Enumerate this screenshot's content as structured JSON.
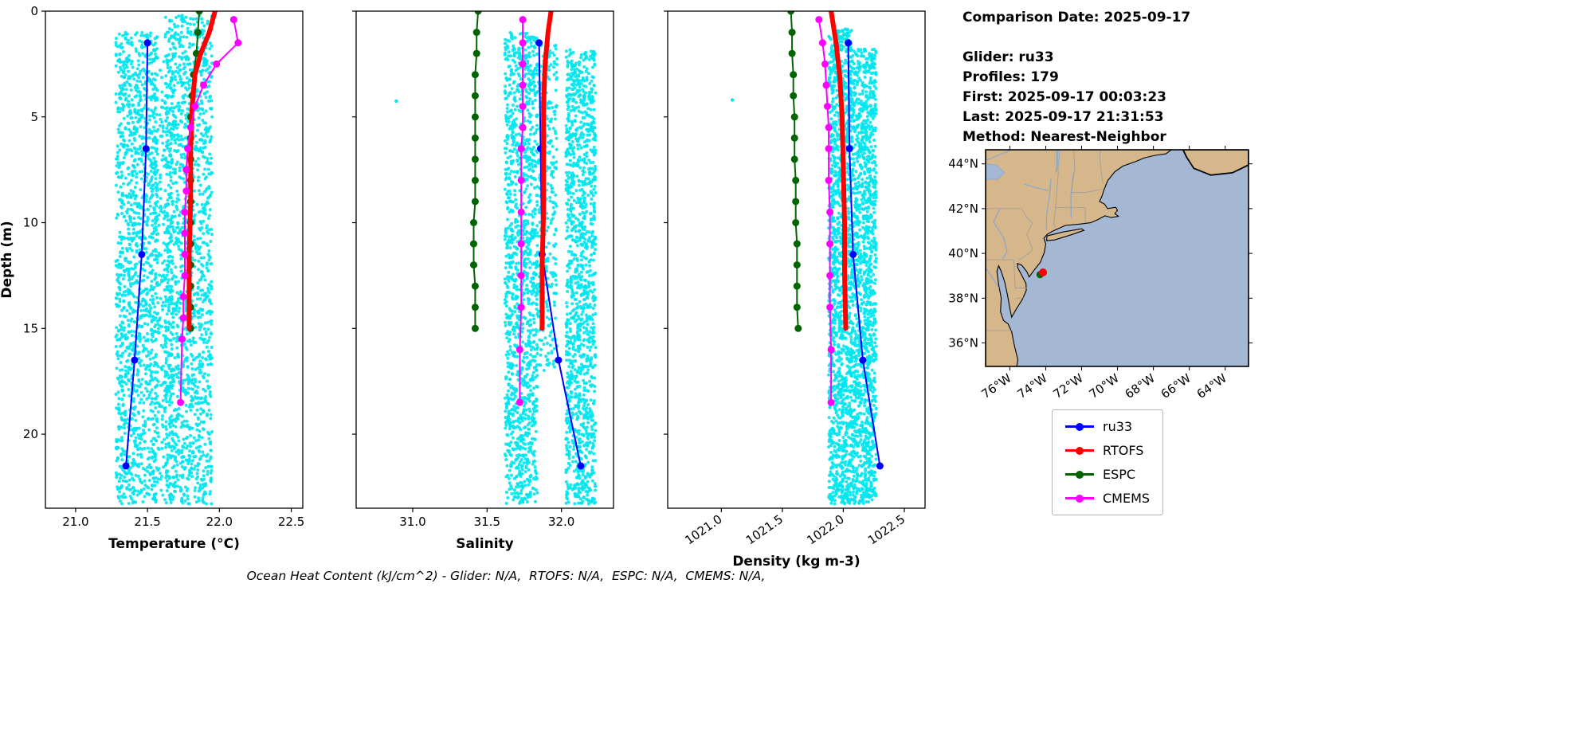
{
  "info_panel": {
    "comparison_date": "Comparison Date: 2025-09-17",
    "glider": "Glider: ru33",
    "profiles": "Profiles: 179",
    "first": "First: 2025-09-17 00:03:23",
    "last": "Last: 2025-09-17 21:31:53",
    "method": "Method: Nearest-Neighbor"
  },
  "footer_note": "Ocean Heat Content (kJ/cm^2) - Glider: N/A,  RTOFS: N/A,  ESPC: N/A,  CMEMS: N/A,",
  "legend": {
    "items": [
      {
        "label": "ru33",
        "color": "#0000ff"
      },
      {
        "label": "RTOFS",
        "color": "#ff0000"
      },
      {
        "label": "ESPC",
        "color": "#006400"
      },
      {
        "label": "CMEMS",
        "color": "#ff00ff"
      }
    ]
  },
  "map": {
    "lat_tick_labels": [
      "44°N",
      "42°N",
      "40°N",
      "38°N",
      "36°N"
    ],
    "lat_tick_values": [
      44,
      42,
      40,
      38,
      36
    ],
    "lon_tick_labels": [
      "76°W",
      "74°W",
      "72°W",
      "70°W",
      "68°W",
      "66°W",
      "64°W"
    ],
    "lon_tick_values": [
      -76,
      -74,
      -72,
      -70,
      -68,
      -66,
      -64
    ],
    "extent": {
      "lon_min": -77.35,
      "lon_max": -62.7,
      "lat_min": 34.95,
      "lat_max": 44.63
    },
    "land_color": "#d5b78b",
    "ocean_color": "#a4b8d4",
    "river_color": "#8aa5cc",
    "state_line_color": "#9b9b9b",
    "glider_marker": {
      "lon": -74.15,
      "lat": 39.15,
      "color": "#ff0000"
    },
    "model_marker": {
      "lon": -74.32,
      "lat": 39.05,
      "color": "#006400"
    }
  },
  "chart_data": [
    {
      "id": "temperature",
      "type": "scatter",
      "seed": 11,
      "xlabel": "Temperature (°C)",
      "ylabel": "Depth (m)",
      "show_ylabel": true,
      "show_ytick_labels": true,
      "xlim": [
        20.79,
        22.58
      ],
      "ylim_depth": [
        0,
        23.5
      ],
      "xticks": [
        21.0,
        21.5,
        22.0,
        22.5
      ],
      "xtick_labels": [
        "21.0",
        "21.5",
        "22.0",
        "22.5"
      ],
      "xtick_rotation": 0,
      "yticks": [
        0,
        5,
        10,
        15,
        20
      ],
      "ytick_labels": [
        "0",
        "5",
        "10",
        "15",
        "20"
      ],
      "scatter": {
        "name": "glider-raw-points",
        "color": "#00e5ee",
        "bands": [
          {
            "x": [
              21.28,
              21.57
            ],
            "depth": [
              1.0,
              23.3
            ],
            "n": 1400
          },
          {
            "x": [
              21.55,
              21.68
            ],
            "depth": [
              2.0,
              23.3
            ],
            "n": 300
          },
          {
            "x": [
              21.62,
              21.95
            ],
            "depth": [
              0.2,
              23.3
            ],
            "n": 1500
          }
        ],
        "extra_points": []
      },
      "series": [
        {
          "name": "ru33",
          "color": "#0000ff",
          "line_width": 2,
          "marker": true,
          "marker_size": 4.5,
          "points": [
            [
              21.5,
              1.5
            ],
            [
              21.49,
              6.5
            ],
            [
              21.46,
              11.5
            ],
            [
              21.41,
              16.5
            ],
            [
              21.35,
              21.5
            ]
          ]
        },
        {
          "name": "ESPC",
          "color": "#006400",
          "line_width": 2,
          "marker": true,
          "marker_size": 4.5,
          "points": [
            [
              21.86,
              0
            ],
            [
              21.85,
              1
            ],
            [
              21.84,
              2
            ],
            [
              21.82,
              3
            ],
            [
              21.81,
              4
            ],
            [
              21.8,
              5
            ],
            [
              21.8,
              6
            ],
            [
              21.8,
              7
            ],
            [
              21.8,
              8
            ],
            [
              21.8,
              9
            ],
            [
              21.8,
              10
            ],
            [
              21.8,
              11
            ],
            [
              21.8,
              12
            ],
            [
              21.8,
              13
            ],
            [
              21.8,
              14
            ],
            [
              21.8,
              15
            ]
          ]
        },
        {
          "name": "RTOFS",
          "color": "#ff0000",
          "line_width": 6,
          "marker": false,
          "marker_size": 0,
          "points": [
            [
              21.97,
              0
            ],
            [
              21.93,
              1
            ],
            [
              21.87,
              2
            ],
            [
              21.83,
              3
            ],
            [
              21.81,
              4.5
            ],
            [
              21.8,
              6.5
            ],
            [
              21.8,
              9
            ],
            [
              21.79,
              11.5
            ],
            [
              21.79,
              15
            ]
          ]
        },
        {
          "name": "CMEMS",
          "color": "#ff00ff",
          "line_width": 2,
          "marker": true,
          "marker_size": 4.5,
          "points": [
            [
              22.1,
              0.4
            ],
            [
              22.13,
              1.5
            ],
            [
              21.98,
              2.5
            ],
            [
              21.89,
              3.5
            ],
            [
              21.83,
              4.5
            ],
            [
              21.8,
              5.5
            ],
            [
              21.78,
              6.5
            ],
            [
              21.77,
              7.5
            ],
            [
              21.77,
              8.5
            ],
            [
              21.76,
              9.5
            ],
            [
              21.76,
              10.5
            ],
            [
              21.76,
              11.5
            ],
            [
              21.76,
              12.5
            ],
            [
              21.75,
              13.5
            ],
            [
              21.75,
              14.5
            ],
            [
              21.74,
              15.5
            ],
            [
              21.73,
              18.5
            ]
          ]
        }
      ]
    },
    {
      "id": "salinity",
      "type": "scatter",
      "seed": 22,
      "xlabel": "Salinity",
      "ylabel": "Depth (m)",
      "show_ylabel": false,
      "show_ytick_labels": false,
      "xlim": [
        30.62,
        32.35
      ],
      "ylim_depth": [
        0,
        23.5
      ],
      "xticks": [
        31.0,
        31.5,
        32.0
      ],
      "xtick_labels": [
        "31.0",
        "31.5",
        "32.0"
      ],
      "xtick_rotation": 0,
      "yticks": [
        0,
        5,
        10,
        15,
        20
      ],
      "ytick_labels": [
        "0",
        "5",
        "10",
        "15",
        "20"
      ],
      "scatter": {
        "name": "glider-raw-points",
        "color": "#00e5ee",
        "bands": [
          {
            "x": [
              31.62,
              31.84
            ],
            "depth": [
              1.0,
              23.3
            ],
            "n": 1300
          },
          {
            "x": [
              31.84,
              31.97
            ],
            "depth": [
              1.5,
              17.0
            ],
            "n": 300
          },
          {
            "x": [
              32.03,
              32.23
            ],
            "depth": [
              1.8,
              23.3
            ],
            "n": 1300
          }
        ],
        "extra_points": [
          [
            30.89,
            4.25
          ]
        ]
      },
      "series": [
        {
          "name": "ru33",
          "color": "#0000ff",
          "line_width": 2,
          "marker": true,
          "marker_size": 4.5,
          "points": [
            [
              31.85,
              1.5
            ],
            [
              31.86,
              6.5
            ],
            [
              31.87,
              11.5
            ],
            [
              31.98,
              16.5
            ],
            [
              32.13,
              21.5
            ]
          ]
        },
        {
          "name": "ESPC",
          "color": "#006400",
          "line_width": 2,
          "marker": true,
          "marker_size": 4.5,
          "points": [
            [
              31.44,
              0
            ],
            [
              31.43,
              1
            ],
            [
              31.43,
              2
            ],
            [
              31.42,
              3
            ],
            [
              31.42,
              4
            ],
            [
              31.42,
              5
            ],
            [
              31.42,
              6
            ],
            [
              31.42,
              7
            ],
            [
              31.42,
              8
            ],
            [
              31.42,
              9
            ],
            [
              31.41,
              10
            ],
            [
              31.41,
              11
            ],
            [
              31.41,
              12
            ],
            [
              31.42,
              13
            ],
            [
              31.42,
              14
            ],
            [
              31.42,
              15
            ]
          ]
        },
        {
          "name": "RTOFS",
          "color": "#ff0000",
          "line_width": 6,
          "marker": false,
          "marker_size": 0,
          "points": [
            [
              31.93,
              0
            ],
            [
              31.91,
              1
            ],
            [
              31.89,
              2.5
            ],
            [
              31.88,
              4.5
            ],
            [
              31.88,
              7
            ],
            [
              31.88,
              9.5
            ],
            [
              31.87,
              12
            ],
            [
              31.87,
              15
            ]
          ]
        },
        {
          "name": "CMEMS",
          "color": "#ff00ff",
          "line_width": 2,
          "marker": true,
          "marker_size": 4.5,
          "points": [
            [
              31.74,
              0.4
            ],
            [
              31.74,
              1.5
            ],
            [
              31.74,
              2.5
            ],
            [
              31.74,
              3.5
            ],
            [
              31.74,
              4.5
            ],
            [
              31.74,
              5.5
            ],
            [
              31.73,
              6.5
            ],
            [
              31.73,
              8
            ],
            [
              31.73,
              9.5
            ],
            [
              31.73,
              11
            ],
            [
              31.73,
              12.5
            ],
            [
              31.73,
              14
            ],
            [
              31.72,
              16
            ],
            [
              31.72,
              18.5
            ]
          ]
        }
      ]
    },
    {
      "id": "density",
      "type": "scatter",
      "seed": 33,
      "xlabel": "Density (kg m-3)",
      "ylabel": "Depth (m)",
      "show_ylabel": false,
      "show_ytick_labels": false,
      "xlim": [
        1020.56,
        1022.67
      ],
      "ylim_depth": [
        0,
        23.5
      ],
      "xticks": [
        1021.0,
        1021.5,
        1022.0,
        1022.5
      ],
      "xtick_labels": [
        "1021.0",
        "1021.5",
        "1022.0",
        "1022.5"
      ],
      "xtick_rotation": 35,
      "yticks": [
        0,
        5,
        10,
        15,
        20
      ],
      "ytick_labels": [
        "0",
        "5",
        "10",
        "15",
        "20"
      ],
      "scatter": {
        "name": "glider-raw-points",
        "color": "#00e5ee",
        "bands": [
          {
            "x": [
              1021.88,
              1022.07
            ],
            "depth": [
              0.8,
              23.3
            ],
            "n": 1400
          },
          {
            "x": [
              1022.07,
              1022.27
            ],
            "depth": [
              1.8,
              23.3
            ],
            "n": 1400
          }
        ],
        "extra_points": [
          [
            1021.09,
            4.2
          ]
        ]
      },
      "series": [
        {
          "name": "ru33",
          "color": "#0000ff",
          "line_width": 2,
          "marker": true,
          "marker_size": 4.5,
          "points": [
            [
              1022.04,
              1.5
            ],
            [
              1022.05,
              6.5
            ],
            [
              1022.08,
              11.5
            ],
            [
              1022.16,
              16.5
            ],
            [
              1022.3,
              21.5
            ]
          ]
        },
        {
          "name": "ESPC",
          "color": "#006400",
          "line_width": 2,
          "marker": true,
          "marker_size": 4.5,
          "points": [
            [
              1021.57,
              0
            ],
            [
              1021.58,
              1
            ],
            [
              1021.58,
              2
            ],
            [
              1021.59,
              3
            ],
            [
              1021.59,
              4
            ],
            [
              1021.6,
              5
            ],
            [
              1021.6,
              6
            ],
            [
              1021.6,
              7
            ],
            [
              1021.61,
              8
            ],
            [
              1021.61,
              9
            ],
            [
              1021.61,
              10
            ],
            [
              1021.62,
              11
            ],
            [
              1021.62,
              12
            ],
            [
              1021.62,
              13
            ],
            [
              1021.62,
              14
            ],
            [
              1021.63,
              15
            ]
          ]
        },
        {
          "name": "RTOFS",
          "color": "#ff0000",
          "line_width": 6,
          "marker": false,
          "marker_size": 0,
          "points": [
            [
              1021.9,
              0
            ],
            [
              1021.94,
              1.5
            ],
            [
              1021.97,
              3
            ],
            [
              1021.99,
              5
            ],
            [
              1022.0,
              7.5
            ],
            [
              1022.01,
              10
            ],
            [
              1022.01,
              12.5
            ],
            [
              1022.02,
              15
            ]
          ]
        },
        {
          "name": "CMEMS",
          "color": "#ff00ff",
          "line_width": 2,
          "marker": true,
          "marker_size": 4.5,
          "points": [
            [
              1021.8,
              0.4
            ],
            [
              1021.83,
              1.5
            ],
            [
              1021.85,
              2.5
            ],
            [
              1021.86,
              3.5
            ],
            [
              1021.87,
              4.5
            ],
            [
              1021.88,
              5.5
            ],
            [
              1021.88,
              6.5
            ],
            [
              1021.88,
              8
            ],
            [
              1021.89,
              9.5
            ],
            [
              1021.89,
              11
            ],
            [
              1021.89,
              12.5
            ],
            [
              1021.89,
              14
            ],
            [
              1021.9,
              16
            ],
            [
              1021.9,
              18.5
            ]
          ]
        }
      ]
    }
  ]
}
